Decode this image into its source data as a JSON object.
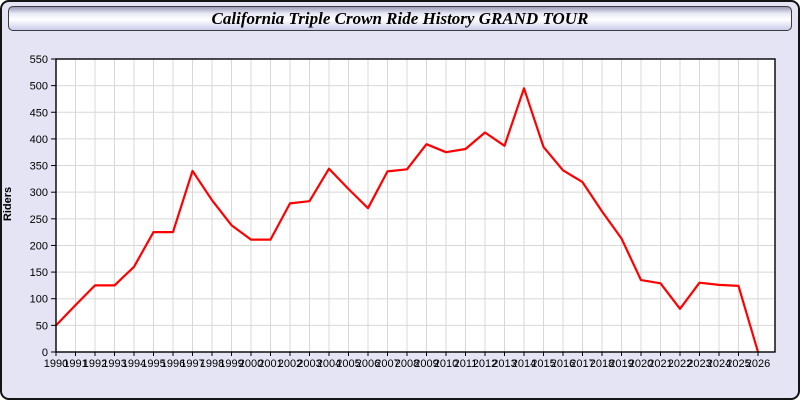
{
  "title": "California Triple Crown Ride History GRAND TOUR",
  "chart_data": {
    "type": "line",
    "title": "California Triple Crown Ride History GRAND TOUR",
    "xlabel": "",
    "ylabel": "Riders",
    "ylim": [
      0,
      550
    ],
    "ytick_step": 50,
    "grid": true,
    "legend_position": "none",
    "x": [
      1990,
      1991,
      1992,
      1993,
      1994,
      1995,
      1996,
      1997,
      1998,
      1999,
      2000,
      2001,
      2002,
      2003,
      2004,
      2005,
      2006,
      2007,
      2008,
      2009,
      2010,
      2011,
      2012,
      2013,
      2014,
      2015,
      2016,
      2017,
      2018,
      2019,
      2020,
      2021,
      2022,
      2023,
      2024,
      2025,
      2026
    ],
    "series": [
      {
        "name": "Riders",
        "values": [
          50,
          88,
          125,
          125,
          160,
          225,
          225,
          340,
          285,
          238,
          211,
          211,
          279,
          283,
          344,
          306,
          270,
          339,
          343,
          390,
          375,
          381,
          412,
          387,
          495,
          385,
          341,
          319,
          264,
          213,
          135,
          129,
          81,
          130,
          126,
          124,
          0
        ]
      }
    ]
  },
  "colors": {
    "background": "#e4e4f4",
    "plot_background": "#ffffff",
    "grid": "#d8d8d8",
    "axis": "#000000",
    "tick_label": "#000000",
    "line": "#ff0000"
  }
}
